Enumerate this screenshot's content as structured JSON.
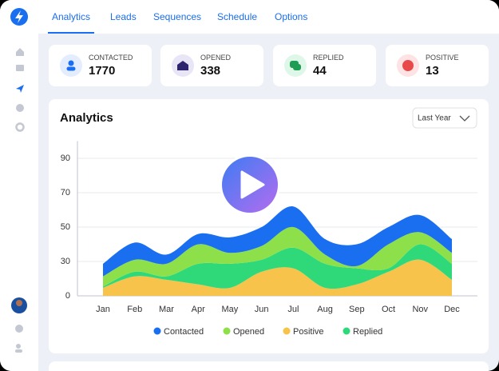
{
  "tabs": [
    "Analytics",
    "Leads",
    "Sequences",
    "Schedule",
    "Options"
  ],
  "stats": [
    {
      "label": "CONTACTED",
      "value": 1770
    },
    {
      "label": "OPENED",
      "value": 338
    },
    {
      "label": "REPLIED",
      "value": 44
    },
    {
      "label": "POSITIVE",
      "value": 13
    }
  ],
  "dropdown": "Last Year",
  "chart_data": {
    "type": "area",
    "title": "Analytics",
    "categories": [
      "Jan",
      "Feb",
      "Mar",
      "Apr",
      "May",
      "Jun",
      "Jul",
      "Aug",
      "Sep",
      "Oct",
      "Nov",
      "Dec"
    ],
    "series": [
      {
        "name": "Contacted",
        "color": "#1a6ef0",
        "values": [
          11,
          10,
          6,
          6,
          9,
          11,
          12,
          9,
          14,
          10,
          10,
          8
        ]
      },
      {
        "name": "Opened",
        "color": "#8ee04a",
        "values": [
          9,
          10,
          11,
          12,
          7,
          8,
          12,
          6,
          2,
          16,
          7,
          7
        ]
      },
      {
        "name": "Positive",
        "color": "#f8c34a",
        "values": [
          7,
          17,
          14,
          10,
          7,
          21,
          24,
          7,
          10,
          21,
          31,
          14
        ]
      },
      {
        "name": "Replied",
        "color": "#2fd97a",
        "values": [
          1,
          4,
          3,
          18,
          21,
          10,
          14,
          21,
          14,
          3,
          9,
          14
        ]
      }
    ],
    "ylim": [
      0,
      100
    ],
    "yticks": [
      0,
      30,
      50,
      70,
      90
    ],
    "grid": true,
    "stacked": true
  }
}
